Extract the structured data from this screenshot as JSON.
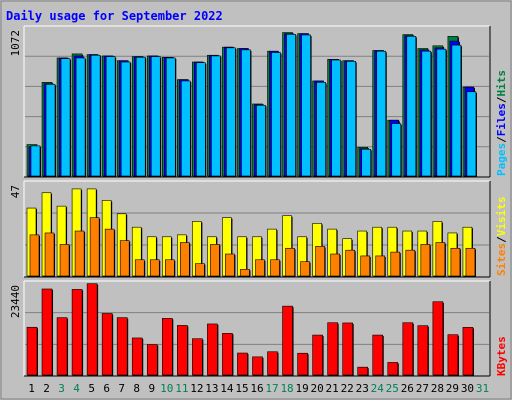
{
  "title": "Daily usage for September 2022",
  "colors": {
    "background": "#c0c0c0",
    "plot_area": "#c0c0c0",
    "border": "#808080",
    "hits": "#008040",
    "files": "#0000ff",
    "pages": "#00c0ff",
    "visits": "#ffff00",
    "sites": "#ff8000",
    "kbytes": "#ff0000",
    "weekend_label": "#00805c",
    "title": "#0000ff"
  },
  "chart_data": [
    {
      "type": "bar",
      "panel": "hits-files-pages",
      "categories": [
        "1",
        "2",
        "3",
        "4",
        "5",
        "6",
        "7",
        "8",
        "9",
        "10",
        "11",
        "12",
        "13",
        "14",
        "15",
        "16",
        "17",
        "18",
        "19",
        "20",
        "21",
        "22",
        "23",
        "24",
        "25",
        "26",
        "27",
        "28",
        "29",
        "30"
      ],
      "y_max_label": "1072",
      "ylim": [
        0,
        1072
      ],
      "grid": true,
      "series": [
        {
          "name": "Hits",
          "values": [
            240,
            700,
            880,
            910,
            905,
            895,
            860,
            890,
            895,
            885,
            720,
            850,
            900,
            960,
            950,
            540,
            930,
            1068,
            1060,
            710,
            870,
            860,
            220,
            935,
            420,
            1053,
            950,
            970,
            1040,
            665
          ]
        },
        {
          "name": "Files",
          "values": [
            225,
            690,
            880,
            895,
            905,
            895,
            860,
            890,
            895,
            885,
            720,
            850,
            900,
            960,
            950,
            535,
            930,
            1060,
            1060,
            710,
            870,
            860,
            210,
            935,
            420,
            1045,
            940,
            955,
            1005,
            665
          ]
        },
        {
          "name": "Pages",
          "values": [
            230,
            685,
            875,
            880,
            900,
            890,
            850,
            885,
            890,
            880,
            710,
            845,
            895,
            955,
            940,
            530,
            920,
            1055,
            1050,
            700,
            865,
            855,
            205,
            930,
            395,
            1040,
            930,
            945,
            975,
            630
          ]
        }
      ]
    },
    {
      "type": "bar",
      "panel": "visits-sites",
      "categories": [
        "1",
        "2",
        "3",
        "4",
        "5",
        "6",
        "7",
        "8",
        "9",
        "10",
        "11",
        "12",
        "13",
        "14",
        "15",
        "16",
        "17",
        "18",
        "19",
        "20",
        "21",
        "22",
        "23",
        "24",
        "25",
        "26",
        "27",
        "28",
        "29",
        "30"
      ],
      "y_max_label": "47",
      "ylim": [
        0,
        47
      ],
      "grid": true,
      "series": [
        {
          "name": "Visits",
          "values": [
            36,
            44,
            37,
            46,
            46,
            40,
            33,
            26,
            21,
            21,
            22,
            29,
            21,
            31,
            21,
            21,
            25,
            32,
            21,
            28,
            25,
            20,
            24,
            26,
            26,
            24,
            24,
            29,
            23,
            26
          ]
        },
        {
          "name": "Sites",
          "values": [
            22,
            23,
            17,
            24,
            31,
            25,
            19,
            9,
            9,
            9,
            18,
            7,
            17,
            12,
            4,
            9,
            9,
            15,
            8,
            16,
            12,
            14,
            11,
            11,
            13,
            14,
            17,
            18,
            15,
            15
          ]
        }
      ]
    },
    {
      "type": "bar",
      "panel": "kbytes",
      "categories": [
        "1",
        "2",
        "3",
        "4",
        "5",
        "6",
        "7",
        "8",
        "9",
        "10",
        "11",
        "12",
        "13",
        "14",
        "15",
        "16",
        "17",
        "18",
        "19",
        "20",
        "21",
        "22",
        "23",
        "24",
        "25",
        "26",
        "27",
        "28",
        "29",
        "30"
      ],
      "y_max_label": "23440",
      "ylim": [
        0,
        23440
      ],
      "grid": true,
      "series": [
        {
          "name": "KBytes",
          "values": [
            12840,
            22920,
            15370,
            22810,
            24310,
            16460,
            15370,
            10020,
            8280,
            15180,
            13320,
            9820,
            13710,
            11230,
            6050,
            5040,
            6390,
            18400,
            6000,
            10780,
            14030,
            13970,
            2330,
            10780,
            3570,
            14030,
            13260,
            19560,
            10880,
            12810
          ]
        }
      ]
    }
  ],
  "x_axis": [
    {
      "label": "1",
      "weekend": false
    },
    {
      "label": "2",
      "weekend": false
    },
    {
      "label": "3",
      "weekend": true
    },
    {
      "label": "4",
      "weekend": true
    },
    {
      "label": "5",
      "weekend": false
    },
    {
      "label": "6",
      "weekend": false
    },
    {
      "label": "7",
      "weekend": false
    },
    {
      "label": "8",
      "weekend": false
    },
    {
      "label": "9",
      "weekend": false
    },
    {
      "label": "10",
      "weekend": true
    },
    {
      "label": "11",
      "weekend": true
    },
    {
      "label": "12",
      "weekend": false
    },
    {
      "label": "13",
      "weekend": false
    },
    {
      "label": "14",
      "weekend": false
    },
    {
      "label": "15",
      "weekend": false
    },
    {
      "label": "16",
      "weekend": false
    },
    {
      "label": "17",
      "weekend": true
    },
    {
      "label": "18",
      "weekend": true
    },
    {
      "label": "19",
      "weekend": false
    },
    {
      "label": "20",
      "weekend": false
    },
    {
      "label": "21",
      "weekend": false
    },
    {
      "label": "22",
      "weekend": false
    },
    {
      "label": "23",
      "weekend": false
    },
    {
      "label": "24",
      "weekend": true
    },
    {
      "label": "25",
      "weekend": true
    },
    {
      "label": "26",
      "weekend": false
    },
    {
      "label": "27",
      "weekend": false
    },
    {
      "label": "28",
      "weekend": false
    },
    {
      "label": "29",
      "weekend": false
    },
    {
      "label": "30",
      "weekend": false
    },
    {
      "label": "31",
      "weekend": true
    }
  ],
  "legends": {
    "top": [
      "Pages",
      "Files",
      "Hits"
    ],
    "top_separator": "/",
    "middle": [
      "Sites",
      "Visits"
    ],
    "middle_separator": "/",
    "bottom": [
      "KBytes"
    ]
  }
}
